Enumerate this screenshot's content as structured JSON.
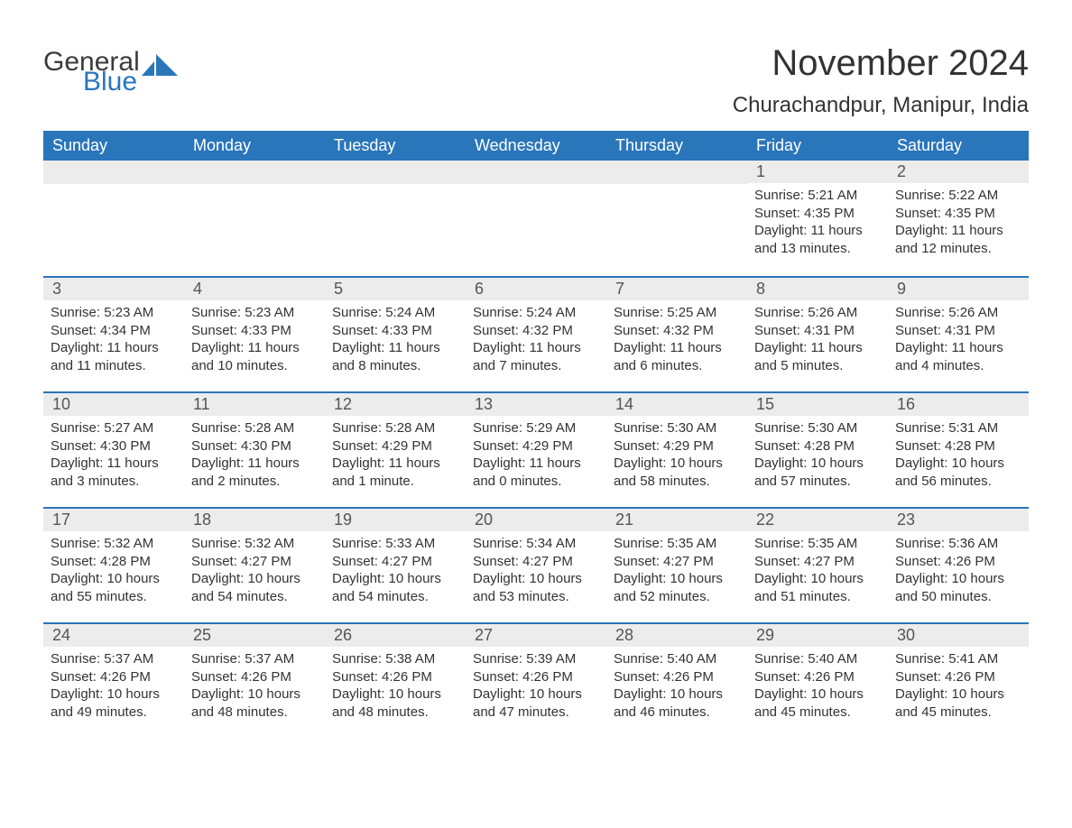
{
  "logo": {
    "word1": "General",
    "word2": "Blue",
    "icon_color": "#2a76bb",
    "text1_color": "#3b3b3b",
    "text2_color": "#2a76bb"
  },
  "title": "November 2024",
  "location": "Churachandpur, Manipur, India",
  "colors": {
    "header_bg": "#2a76bb",
    "header_text": "#ffffff",
    "strip_bg": "#ececec",
    "body_text": "#333333",
    "week_border": "#2a76bb",
    "page_bg": "#ffffff"
  },
  "font": {
    "title_size": 40,
    "location_size": 24,
    "dayhead_size": 18,
    "daynum_size": 18,
    "detail_size": 15
  },
  "day_headers": [
    "Sunday",
    "Monday",
    "Tuesday",
    "Wednesday",
    "Thursday",
    "Friday",
    "Saturday"
  ],
  "weeks": [
    [
      null,
      null,
      null,
      null,
      null,
      {
        "n": "1",
        "sr": "Sunrise: 5:21 AM",
        "ss": "Sunset: 4:35 PM",
        "dl": "Daylight: 11 hours and 13 minutes."
      },
      {
        "n": "2",
        "sr": "Sunrise: 5:22 AM",
        "ss": "Sunset: 4:35 PM",
        "dl": "Daylight: 11 hours and 12 minutes."
      }
    ],
    [
      {
        "n": "3",
        "sr": "Sunrise: 5:23 AM",
        "ss": "Sunset: 4:34 PM",
        "dl": "Daylight: 11 hours and 11 minutes."
      },
      {
        "n": "4",
        "sr": "Sunrise: 5:23 AM",
        "ss": "Sunset: 4:33 PM",
        "dl": "Daylight: 11 hours and 10 minutes."
      },
      {
        "n": "5",
        "sr": "Sunrise: 5:24 AM",
        "ss": "Sunset: 4:33 PM",
        "dl": "Daylight: 11 hours and 8 minutes."
      },
      {
        "n": "6",
        "sr": "Sunrise: 5:24 AM",
        "ss": "Sunset: 4:32 PM",
        "dl": "Daylight: 11 hours and 7 minutes."
      },
      {
        "n": "7",
        "sr": "Sunrise: 5:25 AM",
        "ss": "Sunset: 4:32 PM",
        "dl": "Daylight: 11 hours and 6 minutes."
      },
      {
        "n": "8",
        "sr": "Sunrise: 5:26 AM",
        "ss": "Sunset: 4:31 PM",
        "dl": "Daylight: 11 hours and 5 minutes."
      },
      {
        "n": "9",
        "sr": "Sunrise: 5:26 AM",
        "ss": "Sunset: 4:31 PM",
        "dl": "Daylight: 11 hours and 4 minutes."
      }
    ],
    [
      {
        "n": "10",
        "sr": "Sunrise: 5:27 AM",
        "ss": "Sunset: 4:30 PM",
        "dl": "Daylight: 11 hours and 3 minutes."
      },
      {
        "n": "11",
        "sr": "Sunrise: 5:28 AM",
        "ss": "Sunset: 4:30 PM",
        "dl": "Daylight: 11 hours and 2 minutes."
      },
      {
        "n": "12",
        "sr": "Sunrise: 5:28 AM",
        "ss": "Sunset: 4:29 PM",
        "dl": "Daylight: 11 hours and 1 minute."
      },
      {
        "n": "13",
        "sr": "Sunrise: 5:29 AM",
        "ss": "Sunset: 4:29 PM",
        "dl": "Daylight: 11 hours and 0 minutes."
      },
      {
        "n": "14",
        "sr": "Sunrise: 5:30 AM",
        "ss": "Sunset: 4:29 PM",
        "dl": "Daylight: 10 hours and 58 minutes."
      },
      {
        "n": "15",
        "sr": "Sunrise: 5:30 AM",
        "ss": "Sunset: 4:28 PM",
        "dl": "Daylight: 10 hours and 57 minutes."
      },
      {
        "n": "16",
        "sr": "Sunrise: 5:31 AM",
        "ss": "Sunset: 4:28 PM",
        "dl": "Daylight: 10 hours and 56 minutes."
      }
    ],
    [
      {
        "n": "17",
        "sr": "Sunrise: 5:32 AM",
        "ss": "Sunset: 4:28 PM",
        "dl": "Daylight: 10 hours and 55 minutes."
      },
      {
        "n": "18",
        "sr": "Sunrise: 5:32 AM",
        "ss": "Sunset: 4:27 PM",
        "dl": "Daylight: 10 hours and 54 minutes."
      },
      {
        "n": "19",
        "sr": "Sunrise: 5:33 AM",
        "ss": "Sunset: 4:27 PM",
        "dl": "Daylight: 10 hours and 54 minutes."
      },
      {
        "n": "20",
        "sr": "Sunrise: 5:34 AM",
        "ss": "Sunset: 4:27 PM",
        "dl": "Daylight: 10 hours and 53 minutes."
      },
      {
        "n": "21",
        "sr": "Sunrise: 5:35 AM",
        "ss": "Sunset: 4:27 PM",
        "dl": "Daylight: 10 hours and 52 minutes."
      },
      {
        "n": "22",
        "sr": "Sunrise: 5:35 AM",
        "ss": "Sunset: 4:27 PM",
        "dl": "Daylight: 10 hours and 51 minutes."
      },
      {
        "n": "23",
        "sr": "Sunrise: 5:36 AM",
        "ss": "Sunset: 4:26 PM",
        "dl": "Daylight: 10 hours and 50 minutes."
      }
    ],
    [
      {
        "n": "24",
        "sr": "Sunrise: 5:37 AM",
        "ss": "Sunset: 4:26 PM",
        "dl": "Daylight: 10 hours and 49 minutes."
      },
      {
        "n": "25",
        "sr": "Sunrise: 5:37 AM",
        "ss": "Sunset: 4:26 PM",
        "dl": "Daylight: 10 hours and 48 minutes."
      },
      {
        "n": "26",
        "sr": "Sunrise: 5:38 AM",
        "ss": "Sunset: 4:26 PM",
        "dl": "Daylight: 10 hours and 48 minutes."
      },
      {
        "n": "27",
        "sr": "Sunrise: 5:39 AM",
        "ss": "Sunset: 4:26 PM",
        "dl": "Daylight: 10 hours and 47 minutes."
      },
      {
        "n": "28",
        "sr": "Sunrise: 5:40 AM",
        "ss": "Sunset: 4:26 PM",
        "dl": "Daylight: 10 hours and 46 minutes."
      },
      {
        "n": "29",
        "sr": "Sunrise: 5:40 AM",
        "ss": "Sunset: 4:26 PM",
        "dl": "Daylight: 10 hours and 45 minutes."
      },
      {
        "n": "30",
        "sr": "Sunrise: 5:41 AM",
        "ss": "Sunset: 4:26 PM",
        "dl": "Daylight: 10 hours and 45 minutes."
      }
    ]
  ]
}
